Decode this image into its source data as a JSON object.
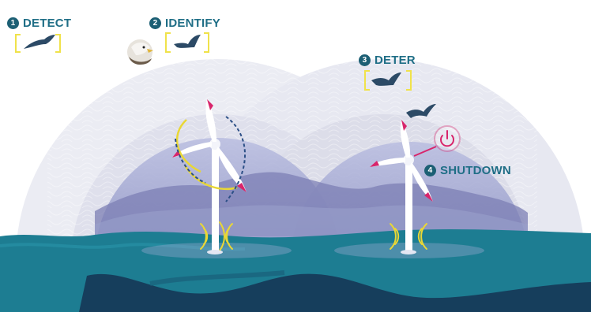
{
  "steps": [
    {
      "number": "1",
      "label": "DETECT"
    },
    {
      "number": "2",
      "label": "IDENTIFY"
    },
    {
      "number": "3",
      "label": "DETER"
    },
    {
      "number": "4",
      "label": "SHUTDOWN"
    }
  ],
  "icons": {
    "bird": "bird-icon",
    "eagle_photo": "eagle-head-icon",
    "power": "power-icon",
    "sound_waves": "sound-wave-icon",
    "turbine": "wind-turbine-icon"
  },
  "colors": {
    "step_text": "#1f6e86",
    "step_badge": "#1c5f74",
    "bracket": "#f0e24a",
    "blade_tip": "#d8256b",
    "water": "#1d7d92",
    "water_dark": "#163e5c",
    "sound_waves": "#e9d735",
    "dome": "#8e93c2"
  }
}
